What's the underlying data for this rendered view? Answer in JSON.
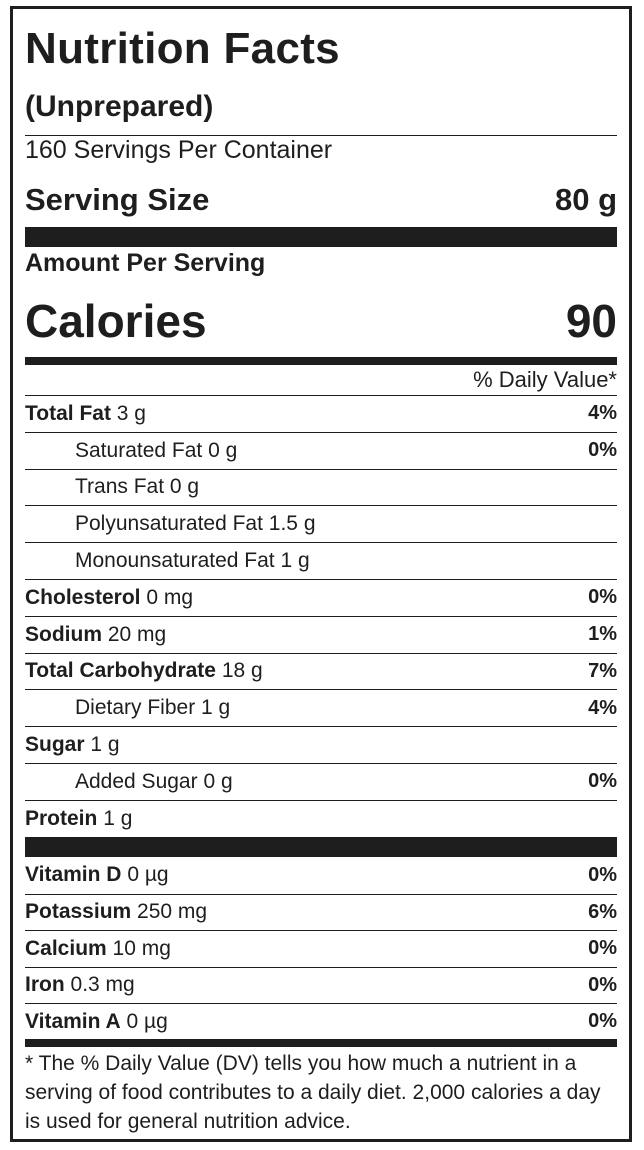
{
  "title": "Nutrition Facts",
  "subtitle": "(Unprepared)",
  "servings_per_container": "160 Servings Per Container",
  "serving_size": {
    "label": "Serving Size",
    "value": "80 g"
  },
  "amount_per_serving": "Amount Per Serving",
  "calories": {
    "label": "Calories",
    "value": "90"
  },
  "daily_value_header": "% Daily Value*",
  "nutrients": [
    {
      "name": "Total Fat",
      "amount": "3 g",
      "dv": "4%"
    },
    {
      "name": "Saturated Fat",
      "amount": "0 g",
      "dv": "0%"
    },
    {
      "name": "Trans Fat",
      "amount": "0 g",
      "dv": ""
    },
    {
      "name": "Polyunsaturated Fat",
      "amount": "1.5 g",
      "dv": ""
    },
    {
      "name": "Monounsaturated Fat",
      "amount": "1 g",
      "dv": ""
    },
    {
      "name": "Cholesterol",
      "amount": "0 mg",
      "dv": "0%"
    },
    {
      "name": "Sodium",
      "amount": "20 mg",
      "dv": "1%"
    },
    {
      "name": "Total Carbohydrate",
      "amount": "18 g",
      "dv": "7%"
    },
    {
      "name": "Dietary Fiber",
      "amount": "1 g",
      "dv": "4%"
    },
    {
      "name": "Sugar",
      "amount": "1 g",
      "dv": ""
    },
    {
      "name": "Added Sugar",
      "amount": "0 g",
      "dv": "0%"
    },
    {
      "name": "Protein",
      "amount": "1 g",
      "dv": ""
    }
  ],
  "vitamins": [
    {
      "name": "Vitamin D",
      "amount": "0 µg",
      "dv": "0%"
    },
    {
      "name": "Potassium",
      "amount": "250 mg",
      "dv": "6%"
    },
    {
      "name": "Calcium",
      "amount": "10 mg",
      "dv": "0%"
    },
    {
      "name": "Iron",
      "amount": "0.3 mg",
      "dv": "0%"
    },
    {
      "name": "Vitamin A",
      "amount": "0 µg",
      "dv": "0%"
    }
  ],
  "footnote": "* The % Daily Value (DV) tells you how much a nutrient in a serving of food contributes to a daily diet. 2,000 calories a day is used for general nutrition advice."
}
